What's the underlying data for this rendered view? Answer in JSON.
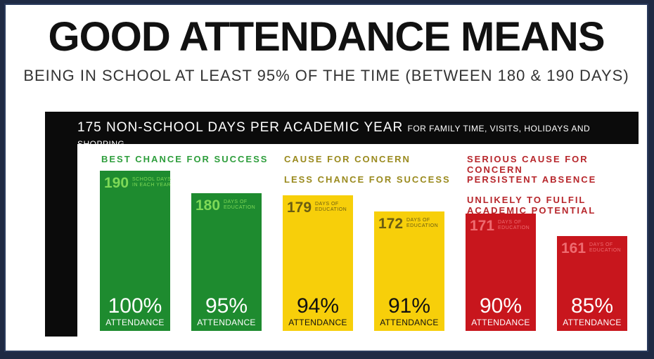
{
  "title": "GOOD ATTENDANCE MEANS",
  "subtitle": "BEING IN SCHOOL AT LEAST 95% OF THE TIME (BETWEEN 180 & 190 DAYS)",
  "top_band": {
    "main": "175 NON-SCHOOL DAYS PER ACADEMIC YEAR ",
    "sub": "FOR FAMILY TIME, VISITS, HOLIDAYS AND SHOPPING"
  },
  "left_band": [
    "190 SCHOOL DAYS",
    "PER ACADEMIC YEAR"
  ],
  "categories": {
    "green": [
      "BEST CHANCE FOR SUCCESS"
    ],
    "yellow": [
      "CAUSE FOR CONCERN",
      "LESS CHANCE FOR SUCCESS"
    ],
    "red": [
      "SERIOUS CAUSE FOR CONCERN",
      "PERSISTENT ABSENCE",
      "UNLIKELY TO FULFIL",
      "ACADEMIC POTENTIAL"
    ]
  },
  "colors": {
    "green": "#1e8b2f",
    "green_text": "#2e9e3c",
    "yellow": "#f7cf0a",
    "yellow_text": "#9a8a1e",
    "red": "#c8161d",
    "red_text": "#b7262b",
    "band": "#0b0b0b"
  },
  "chart_data": {
    "type": "bar",
    "title": "GOOD ATTENDANCE MEANS",
    "categories": [
      "100%",
      "95%",
      "94%",
      "91%",
      "90%",
      "85%"
    ],
    "values": [
      190,
      180,
      179,
      172,
      171,
      161
    ],
    "days_labels": [
      "190",
      "180",
      "179",
      "172",
      "171",
      "161"
    ],
    "days_units": [
      "SCHOOL DAYS IN EACH YEAR",
      "DAYS OF EDUCATION",
      "DAYS OF EDUCATION",
      "DAYS OF EDUCATION",
      "DAYS OF EDUCATION",
      "DAYS OF EDUCATION"
    ],
    "attendance_label": "ATTENDANCE",
    "groups": [
      "green",
      "green",
      "yellow",
      "yellow",
      "red",
      "red"
    ],
    "ylim": [
      150,
      190
    ]
  }
}
